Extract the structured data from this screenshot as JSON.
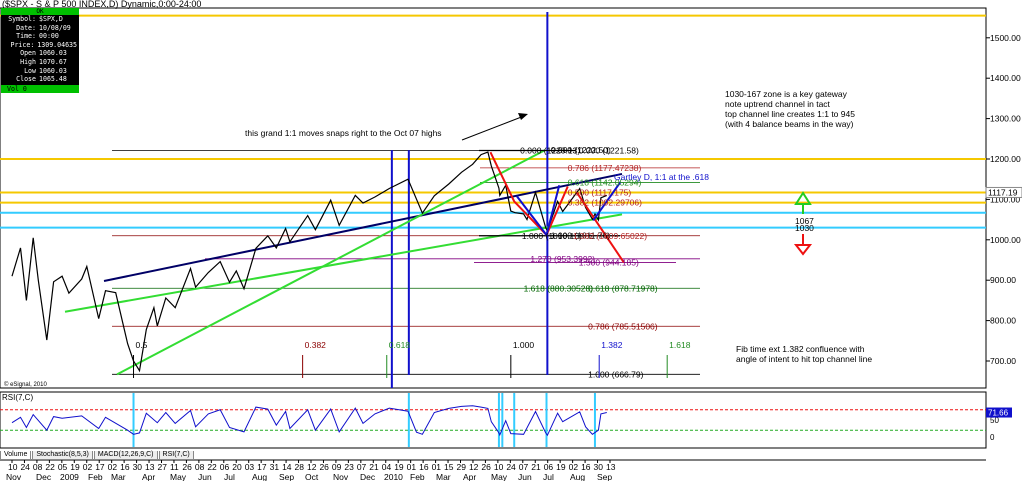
{
  "window_title": "($SPX - S & P 500 INDEX,D) Dynamic,0:00-24:00",
  "info_box": {
    "status": "OK",
    "rows": [
      {
        "k": "Symbol:",
        "v": "$SPX,D"
      },
      {
        "k": "Date:",
        "v": "10/08/09"
      },
      {
        "k": "Time:",
        "v": "00:00"
      },
      {
        "k": "Price:",
        "v": "1309.04635"
      },
      {
        "k": "Open",
        "v": "1060.03"
      },
      {
        "k": "High",
        "v": "1070.67"
      },
      {
        "k": "Low",
        "v": "1060.03"
      },
      {
        "k": "Close",
        "v": "1065.48"
      }
    ],
    "volume": "Vol 0"
  },
  "tabs": [
    "Volume",
    "Stochastic(8,5,3)",
    "MACD(12,26,9,C)",
    "RSI(7,C)"
  ],
  "rsi_label": "RSI(7,C)",
  "rsi_value": "71.66",
  "copyright": "© eSignal, 2010",
  "colors": {
    "yellow_line": "#f5c800",
    "cyan_line": "#33ccff",
    "navy_line": "#000066",
    "green_line": "#33dd33",
    "blue_line": "#1010cc",
    "red_line": "#ee1111",
    "price_box": "#000000"
  },
  "annotations": {
    "grand_move": "this grand 1:1 moves snaps right to the Oct 07 highs",
    "zone_note": [
      "1030-167 zone is a key gateway",
      "note uptrend channel in tact",
      "top channel line creates 1:1 to 945",
      "(with 4 balance beams in the way)"
    ],
    "gartley": "Gartley D, 1:1 at the .618",
    "fib_time": [
      "Fib time ext 1.382 confluence with",
      "angle of intent to hit top channel line"
    ],
    "zone_top": "1067",
    "zone_bottom": "1030"
  },
  "chart_data": {
    "type": "line",
    "title": "($SPX - S & P 500 INDEX,D) Dynamic,0:00-24:00",
    "y_axis": {
      "ticks": [
        700,
        800,
        900,
        1000,
        1100,
        1200,
        1300,
        1400,
        1500
      ],
      "range": [
        655,
        1585
      ]
    },
    "x_axis_days": [
      "10",
      "24",
      "08",
      "22",
      "05",
      "19",
      "02",
      "17",
      "02",
      "16",
      "30",
      "13",
      "27",
      "11",
      "26",
      "08",
      "22",
      "06",
      "20",
      "03",
      "17",
      "31",
      "14",
      "28",
      "12",
      "26",
      "09",
      "23",
      "07",
      "21",
      "04",
      "19",
      "01",
      "16",
      "01",
      "15",
      "29",
      "12",
      "26",
      "10",
      "24",
      "07",
      "21",
      "06",
      "19",
      "02",
      "16",
      "30",
      "13"
    ],
    "x_axis_months": [
      "Nov",
      "Dec",
      "2009",
      "Feb",
      "Mar",
      "Apr",
      "May",
      "Jun",
      "Jul",
      "Aug",
      "Sep",
      "Oct",
      "Nov",
      "Dec",
      "2010",
      "Feb",
      "Mar",
      "Apr",
      "May",
      "Jun",
      "Jul",
      "Aug",
      "Sep"
    ],
    "price_badge": "1117.19",
    "series": [
      {
        "values": [
          [
            "2008-10-10",
            910
          ],
          [
            "2008-10-20",
            980
          ],
          [
            "2008-10-27",
            850
          ],
          [
            "2008-11-04",
            1005
          ],
          [
            "2008-11-10",
            900
          ],
          [
            "2008-11-20",
            752
          ],
          [
            "2008-11-28",
            896
          ],
          [
            "2008-12-08",
            910
          ],
          [
            "2008-12-16",
            868
          ],
          [
            "2008-12-31",
            903
          ],
          [
            "2009-01-06",
            934
          ],
          [
            "2009-01-20",
            805
          ],
          [
            "2009-01-28",
            874
          ],
          [
            "2009-02-09",
            869
          ],
          [
            "2009-02-23",
            743
          ],
          [
            "2009-03-02",
            700
          ],
          [
            "2009-03-09",
            676
          ],
          [
            "2009-03-17",
            778
          ],
          [
            "2009-03-26",
            832
          ],
          [
            "2009-03-30",
            787
          ],
          [
            "2009-04-09",
            856
          ],
          [
            "2009-04-20",
            832
          ],
          [
            "2009-05-08",
            929
          ],
          [
            "2009-05-14",
            883
          ],
          [
            "2009-05-29",
            919
          ],
          [
            "2009-06-12",
            946
          ],
          [
            "2009-06-23",
            895
          ],
          [
            "2009-07-01",
            923
          ],
          [
            "2009-07-10",
            879
          ],
          [
            "2009-07-24",
            979
          ],
          [
            "2009-08-07",
            1010
          ],
          [
            "2009-08-17",
            980
          ],
          [
            "2009-08-28",
            1028
          ],
          [
            "2009-09-02",
            995
          ],
          [
            "2009-09-23",
            1060
          ],
          [
            "2009-10-02",
            1025
          ],
          [
            "2009-10-20",
            1098
          ],
          [
            "2009-10-30",
            1036
          ],
          [
            "2009-11-18",
            1110
          ],
          [
            "2009-11-27",
            1091
          ],
          [
            "2009-12-11",
            1106
          ],
          [
            "2009-12-28",
            1127
          ],
          [
            "2010-01-19",
            1150
          ],
          [
            "2010-02-05",
            1066
          ],
          [
            "2010-02-19",
            1109
          ],
          [
            "2010-03-08",
            1138
          ],
          [
            "2010-03-23",
            1167
          ],
          [
            "2010-04-05",
            1187
          ],
          [
            "2010-04-15",
            1211
          ],
          [
            "2010-04-23",
            1217
          ],
          [
            "2010-04-27",
            1183
          ],
          [
            "2010-05-06",
            1128
          ],
          [
            "2010-05-07",
            1110
          ],
          [
            "2010-05-14",
            1135
          ],
          [
            "2010-05-20",
            1071
          ],
          [
            "2010-05-25",
            1067
          ],
          [
            "2010-06-04",
            1064
          ],
          [
            "2010-06-08",
            1050
          ],
          [
            "2010-06-18",
            1117
          ],
          [
            "2010-06-30",
            1030
          ],
          [
            "2010-07-02",
            1022
          ],
          [
            "2010-07-14",
            1095
          ],
          [
            "2010-07-20",
            1070
          ],
          [
            "2010-08-09",
            1127
          ],
          [
            "2010-08-16",
            1080
          ],
          [
            "2010-08-24",
            1051
          ],
          [
            "2010-08-27",
            1064
          ],
          [
            "2010-08-31",
            1049
          ],
          [
            "2010-09-03",
            1104
          ],
          [
            "2010-09-10",
            1110
          ]
        ]
      }
    ],
    "rsi_series": [
      [
        "2008-10-10",
        42
      ],
      [
        "2008-10-20",
        58
      ],
      [
        "2008-10-27",
        28
      ],
      [
        "2008-11-04",
        66
      ],
      [
        "2008-11-20",
        20
      ],
      [
        "2008-11-28",
        60
      ],
      [
        "2008-12-08",
        55
      ],
      [
        "2008-12-31",
        62
      ],
      [
        "2009-01-20",
        25
      ],
      [
        "2009-01-28",
        58
      ],
      [
        "2009-02-23",
        20
      ],
      [
        "2009-03-02",
        8
      ],
      [
        "2009-03-09",
        12
      ],
      [
        "2009-03-17",
        70
      ],
      [
        "2009-03-30",
        42
      ],
      [
        "2009-04-09",
        72
      ],
      [
        "2009-04-20",
        40
      ],
      [
        "2009-05-08",
        78
      ],
      [
        "2009-05-14",
        30
      ],
      [
        "2009-05-29",
        68
      ],
      [
        "2009-06-12",
        80
      ],
      [
        "2009-06-23",
        28
      ],
      [
        "2009-07-10",
        15
      ],
      [
        "2009-07-24",
        88
      ],
      [
        "2009-08-07",
        82
      ],
      [
        "2009-08-17",
        35
      ],
      [
        "2009-08-28",
        75
      ],
      [
        "2009-09-02",
        25
      ],
      [
        "2009-09-23",
        80
      ],
      [
        "2009-10-02",
        20
      ],
      [
        "2009-10-20",
        82
      ],
      [
        "2009-10-30",
        15
      ],
      [
        "2009-11-18",
        85
      ],
      [
        "2009-11-27",
        40
      ],
      [
        "2009-12-11",
        68
      ],
      [
        "2009-12-28",
        85
      ],
      [
        "2010-01-19",
        76
      ],
      [
        "2010-01-29",
        14
      ],
      [
        "2010-02-05",
        8
      ],
      [
        "2010-02-19",
        72
      ],
      [
        "2010-03-08",
        84
      ],
      [
        "2010-03-23",
        90
      ],
      [
        "2010-04-05",
        92
      ],
      [
        "2010-04-15",
        88
      ],
      [
        "2010-04-23",
        84
      ],
      [
        "2010-04-27",
        45
      ],
      [
        "2010-05-06",
        12
      ],
      [
        "2010-05-07",
        6
      ],
      [
        "2010-05-14",
        48
      ],
      [
        "2010-05-20",
        10
      ],
      [
        "2010-06-04",
        8
      ],
      [
        "2010-06-18",
        75
      ],
      [
        "2010-06-30",
        12
      ],
      [
        "2010-07-02",
        5
      ],
      [
        "2010-07-14",
        70
      ],
      [
        "2010-07-20",
        45
      ],
      [
        "2010-08-09",
        74
      ],
      [
        "2010-08-16",
        30
      ],
      [
        "2010-08-24",
        8
      ],
      [
        "2010-08-31",
        20
      ],
      [
        "2010-09-03",
        68
      ],
      [
        "2010-09-10",
        72
      ]
    ],
    "rsi_axis": {
      "ticks": [
        0,
        50
      ],
      "range": [
        0,
        100
      ]
    },
    "h_levels": [
      {
        "value": 1555,
        "color": "yellow"
      },
      {
        "value": 1200,
        "color": "yellow"
      },
      {
        "value": 1117,
        "color": "yellow"
      },
      {
        "value": 1092,
        "color": "yellow"
      },
      {
        "value": 1067,
        "color": "cyan"
      },
      {
        "value": 1030,
        "color": "cyan"
      }
    ],
    "fib_labels": [
      {
        "text": "0.000 (1220.13)",
        "x": "2010-05-31",
        "y": 1221,
        "color": "#000000"
      },
      {
        "text": "0.000 (1222.50)",
        "x": "2010-07-06",
        "y": 1222,
        "color": "#000000"
      },
      {
        "text": "0.000 (1221.58)",
        "x": "2010-08-08",
        "y": 1221,
        "color": "#000000"
      },
      {
        "text": "0.786 (1177.47238)",
        "x": "2010-07-26",
        "y": 1178,
        "color": "#b22222"
      },
      {
        "text": "0.618 (1142.05294)",
        "x": "2010-07-26",
        "y": 1142,
        "color": "#228b22"
      },
      {
        "text": "0.500 (1117.175)",
        "x": "2010-07-26",
        "y": 1117,
        "color": "#b22222"
      },
      {
        "text": "0.382 (1092.29706)",
        "x": "2010-07-26",
        "y": 1092,
        "color": "#b22222"
      },
      {
        "text": "1.000 (1010.10)",
        "x": "2010-06-02",
        "y": 1010,
        "color": "#000000"
      },
      {
        "text": "1.000 (1011.76)",
        "x": "2010-07-06",
        "y": 1011,
        "color": "#000000"
      },
      {
        "text": "1.382 (1009.65022)",
        "x": "2010-08-01",
        "y": 1010,
        "color": "#b22222"
      },
      {
        "text": "1.270 (953.3992)",
        "x": "2010-06-12",
        "y": 953,
        "color": "#800080"
      },
      {
        "text": "1.500 (944.185)",
        "x": "2010-08-08",
        "y": 944,
        "color": "#800080"
      },
      {
        "text": "1.618 (880.30528)",
        "x": "2010-06-04",
        "y": 880,
        "color": "#006400"
      },
      {
        "text": "0.618 (878.71978)",
        "x": "2010-08-19",
        "y": 879,
        "color": "#006400"
      },
      {
        "text": "0.786 (785.51506)",
        "x": "2010-08-19",
        "y": 786,
        "color": "#8b0000"
      },
      {
        "text": "1.000 (666.79)",
        "x": "2010-08-19",
        "y": 667,
        "color": "#000000"
      }
    ],
    "fib_time_labels": [
      {
        "text": "0.5",
        "x": "2009-03-02",
        "color": "#000000"
      },
      {
        "text": "0.382",
        "x": "2009-09-17",
        "color": "#8b0000"
      },
      {
        "text": "0.618",
        "x": "2009-12-25",
        "color": "#228b22"
      },
      {
        "text": "1.000",
        "x": "2010-05-20",
        "color": "#000000"
      },
      {
        "text": "1.382",
        "x": "2010-09-01",
        "color": "#1010cc"
      },
      {
        "text": "1.618",
        "x": "2010-11-20",
        "color": "#228b22"
      }
    ]
  }
}
